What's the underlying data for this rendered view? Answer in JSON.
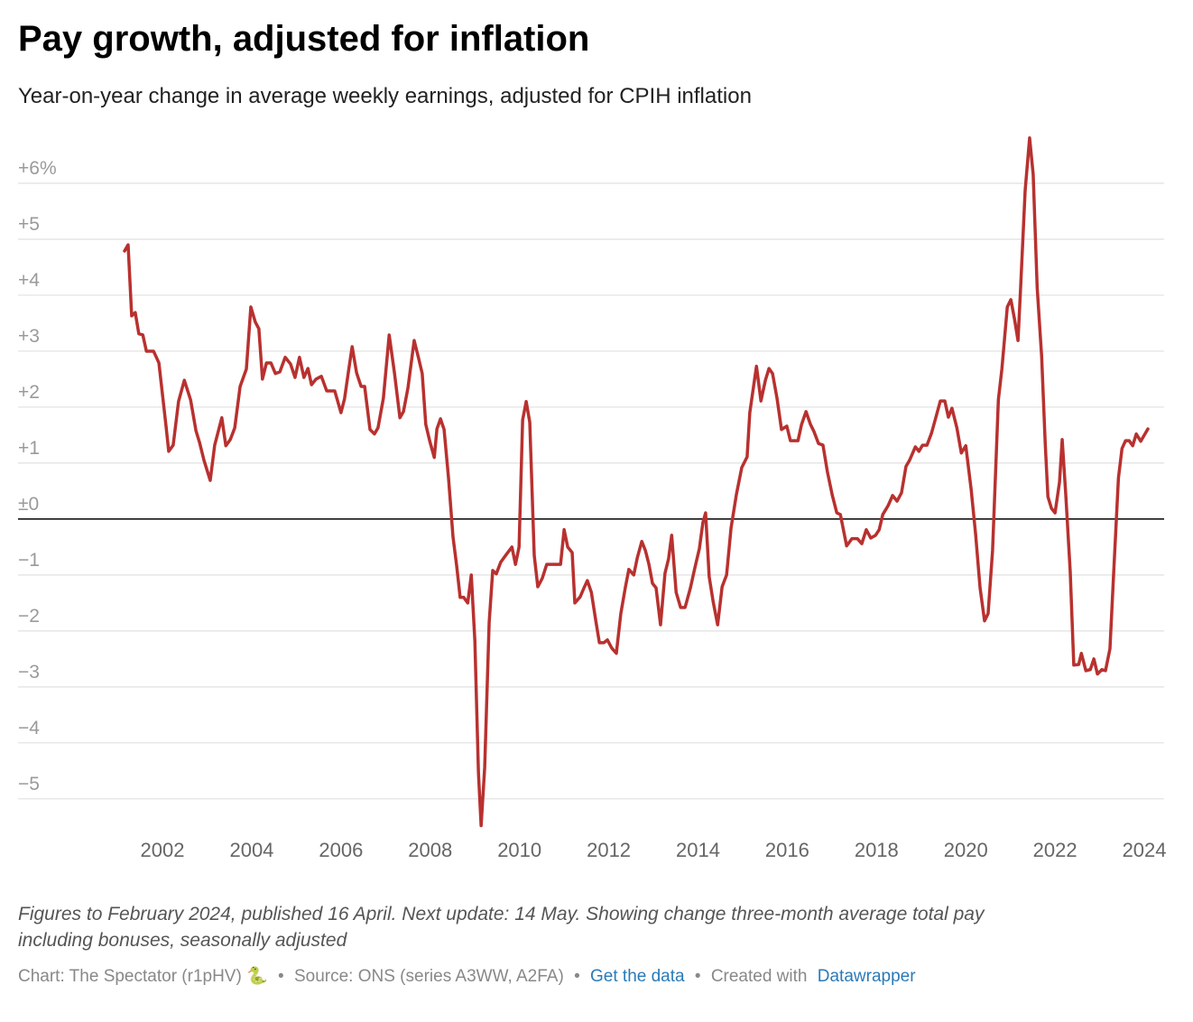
{
  "chart_data": {
    "type": "line",
    "title": "Pay growth, adjusted for inflation",
    "subtitle": "Year-on-year change in average weekly earnings, adjusted for CPIH inflation",
    "color": "#b8312f",
    "grid": true,
    "xlim": [
      2001.15,
      2024.08
    ],
    "ylim": [
      -5.6,
      6.8
    ],
    "xticks": [
      2002,
      2004,
      2006,
      2008,
      2010,
      2012,
      2014,
      2016,
      2018,
      2020,
      2022,
      2024
    ],
    "yticks": [
      {
        "value": 6,
        "label": "+6%"
      },
      {
        "value": 5,
        "label": "+5"
      },
      {
        "value": 4,
        "label": "+4"
      },
      {
        "value": 3,
        "label": "+3"
      },
      {
        "value": 2,
        "label": "+2"
      },
      {
        "value": 1,
        "label": "+1"
      },
      {
        "value": 0,
        "label": "±0"
      },
      {
        "value": -1,
        "label": "−1"
      },
      {
        "value": -2,
        "label": "−2"
      },
      {
        "value": -3,
        "label": "−3"
      },
      {
        "value": -4,
        "label": "−4"
      },
      {
        "value": -5,
        "label": "−5"
      }
    ],
    "x": [
      2001.15,
      2001.23,
      2001.31,
      2001.39,
      2001.47,
      2001.56,
      2001.64,
      2001.8,
      2001.92,
      2002.08,
      2002.14,
      2002.24,
      2002.36,
      2002.49,
      2002.63,
      2002.75,
      2002.83,
      2002.93,
      2003.07,
      2003.17,
      2003.33,
      2003.42,
      2003.52,
      2003.62,
      2003.74,
      2003.88,
      2003.98,
      2004.08,
      2004.16,
      2004.24,
      2004.33,
      2004.43,
      2004.53,
      2004.63,
      2004.75,
      2004.87,
      2004.97,
      2005.07,
      2005.17,
      2005.26,
      2005.34,
      2005.44,
      2005.56,
      2005.68,
      2005.86,
      2006.0,
      2006.08,
      2006.17,
      2006.25,
      2006.35,
      2006.45,
      2006.53,
      2006.65,
      2006.75,
      2006.83,
      2006.95,
      2007.08,
      2007.2,
      2007.32,
      2007.4,
      2007.5,
      2007.64,
      2007.74,
      2007.82,
      2007.9,
      2007.99,
      2008.09,
      2008.15,
      2008.23,
      2008.31,
      2008.41,
      2008.51,
      2008.59,
      2008.67,
      2008.75,
      2008.84,
      2008.92,
      2009.0,
      2009.08,
      2009.14,
      2009.22,
      2009.32,
      2009.4,
      2009.48,
      2009.58,
      2009.68,
      2009.83,
      2009.91,
      2009.99,
      2010.07,
      2010.15,
      2010.23,
      2010.33,
      2010.41,
      2010.51,
      2010.61,
      2010.92,
      2011.0,
      2011.08,
      2011.18,
      2011.24,
      2011.36,
      2011.44,
      2011.52,
      2011.61,
      2011.71,
      2011.79,
      2011.89,
      2011.97,
      2012.07,
      2012.17,
      2012.27,
      2012.37,
      2012.45,
      2012.56,
      2012.64,
      2012.74,
      2012.82,
      2012.9,
      2012.98,
      2013.06,
      2013.16,
      2013.26,
      2013.34,
      2013.41,
      2013.51,
      2013.61,
      2013.71,
      2013.83,
      2013.93,
      2014.03,
      2014.11,
      2014.17,
      2014.25,
      2014.34,
      2014.44,
      2014.54,
      2014.64,
      2014.74,
      2014.86,
      2014.98,
      2015.1,
      2015.16,
      2015.31,
      2015.41,
      2015.51,
      2015.59,
      2015.67,
      2015.77,
      2015.87,
      2015.99,
      2016.07,
      2016.24,
      2016.32,
      2016.42,
      2016.52,
      2016.6,
      2016.7,
      2016.8,
      2016.9,
      2017.01,
      2017.11,
      2017.19,
      2017.33,
      2017.45,
      2017.57,
      2017.67,
      2017.77,
      2017.87,
      2017.98,
      2018.06,
      2018.14,
      2018.26,
      2018.36,
      2018.46,
      2018.56,
      2018.66,
      2018.74,
      2018.87,
      2018.95,
      2019.03,
      2019.13,
      2019.23,
      2019.31,
      2019.43,
      2019.53,
      2019.61,
      2019.69,
      2019.8,
      2019.9,
      2020.0,
      2020.12,
      2020.22,
      2020.32,
      2020.42,
      2020.5,
      2020.6,
      2020.73,
      2020.81,
      2020.93,
      2021.01,
      2021.09,
      2021.17,
      2021.23,
      2021.33,
      2021.43,
      2021.51,
      2021.6,
      2021.7,
      2021.78,
      2021.84,
      2021.92,
      2022.0,
      2022.1,
      2022.16,
      2022.24,
      2022.34,
      2022.42,
      2022.53,
      2022.59,
      2022.69,
      2022.79,
      2022.87,
      2022.95,
      2023.05,
      2023.13,
      2023.23,
      2023.31,
      2023.42,
      2023.5,
      2023.58,
      2023.66,
      2023.74,
      2023.82,
      2023.92,
      2024.08
    ],
    "values": [
      4.79,
      4.9,
      3.63,
      3.69,
      3.31,
      3.29,
      3.0,
      3.0,
      2.79,
      1.66,
      1.21,
      1.32,
      2.1,
      2.48,
      2.13,
      1.58,
      1.37,
      1.05,
      0.69,
      1.32,
      1.81,
      1.31,
      1.42,
      1.63,
      2.37,
      2.68,
      3.79,
      3.52,
      3.4,
      2.5,
      2.79,
      2.79,
      2.6,
      2.63,
      2.89,
      2.77,
      2.53,
      2.89,
      2.53,
      2.69,
      2.4,
      2.5,
      2.55,
      2.29,
      2.29,
      1.9,
      2.15,
      2.65,
      3.08,
      2.61,
      2.37,
      2.37,
      1.6,
      1.52,
      1.63,
      2.16,
      3.29,
      2.6,
      1.81,
      1.92,
      2.34,
      3.19,
      2.87,
      2.6,
      1.69,
      1.39,
      1.1,
      1.61,
      1.79,
      1.6,
      0.73,
      -0.32,
      -0.82,
      -1.4,
      -1.4,
      -1.5,
      -1.0,
      -2.18,
      -4.53,
      -5.48,
      -4.44,
      -1.85,
      -0.92,
      -0.98,
      -0.77,
      -0.66,
      -0.5,
      -0.81,
      -0.5,
      1.77,
      2.1,
      1.73,
      -0.65,
      -1.21,
      -1.06,
      -0.81,
      -0.81,
      -0.19,
      -0.5,
      -0.6,
      -1.5,
      -1.39,
      -1.24,
      -1.1,
      -1.31,
      -1.82,
      -2.21,
      -2.21,
      -2.16,
      -2.31,
      -2.4,
      -1.69,
      -1.23,
      -0.9,
      -1.0,
      -0.69,
      -0.4,
      -0.56,
      -0.81,
      -1.15,
      -1.23,
      -1.89,
      -0.97,
      -0.71,
      -0.29,
      -1.31,
      -1.58,
      -1.58,
      -1.23,
      -0.87,
      -0.53,
      -0.06,
      0.11,
      -1.03,
      -1.48,
      -1.89,
      -1.21,
      -1.0,
      -0.16,
      0.44,
      0.92,
      1.11,
      1.9,
      2.73,
      2.11,
      2.48,
      2.69,
      2.6,
      2.16,
      1.6,
      1.66,
      1.4,
      1.4,
      1.69,
      1.92,
      1.69,
      1.56,
      1.35,
      1.32,
      0.84,
      0.42,
      0.11,
      0.08,
      -0.48,
      -0.35,
      -0.35,
      -0.44,
      -0.19,
      -0.34,
      -0.29,
      -0.19,
      0.08,
      0.24,
      0.42,
      0.32,
      0.47,
      0.94,
      1.05,
      1.29,
      1.21,
      1.32,
      1.32,
      1.53,
      1.76,
      2.11,
      2.11,
      1.82,
      1.98,
      1.63,
      1.18,
      1.31,
      0.53,
      -0.27,
      -1.23,
      -1.82,
      -1.69,
      -0.56,
      2.13,
      2.69,
      3.79,
      3.92,
      3.58,
      3.19,
      4.16,
      5.87,
      6.81,
      6.16,
      4.13,
      2.9,
      1.35,
      0.4,
      0.19,
      0.11,
      0.66,
      1.42,
      0.44,
      -0.94,
      -2.61,
      -2.6,
      -2.4,
      -2.71,
      -2.69,
      -2.5,
      -2.77,
      -2.69,
      -2.71,
      -2.32,
      -1.02,
      0.73,
      1.26,
      1.4,
      1.4,
      1.31,
      1.52,
      1.39,
      1.61
    ],
    "notes": [
      "Figures to February 2024, published 16 April. Next update: 14 May. Showing change three-month average total pay",
      "including bonuses, seasonally adjusted"
    ],
    "footer": {
      "credit": "Chart: The Spectator (r1pHV) 🐍",
      "separator": "•",
      "source": "Source: ONS (series A3WW, A2FA)",
      "get_data": "Get the data",
      "created_with": "Created with",
      "tool": "Datawrapper"
    }
  }
}
